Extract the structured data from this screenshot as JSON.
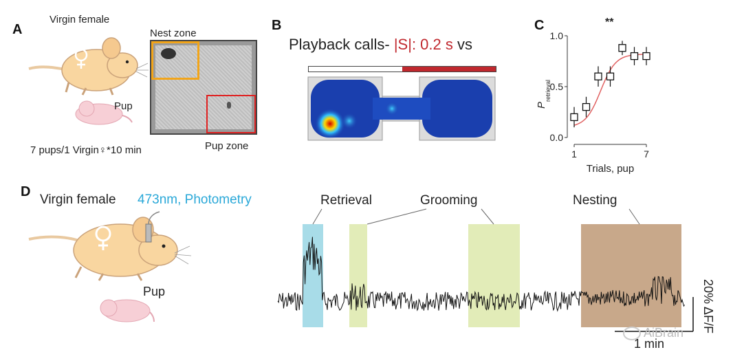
{
  "panel_a": {
    "label": "A",
    "subject": "Virgin female",
    "pup_label": "Pup",
    "nest_zone": "Nest zone",
    "pup_zone": "Pup zone",
    "protocol": "7 pups/1 Virgin♀*10 min",
    "colors": {
      "nest": "#f2a51a",
      "pup_zone": "#e02020",
      "mouse": "#f9d6a0",
      "pup": "#f7cfd6"
    }
  },
  "panel_b": {
    "label": "B",
    "title_prefix": "Playback calls- ",
    "title_red": "|S|: 0.2 s",
    "title_suffix": " vs",
    "colors": {
      "red": "#c0282e",
      "heat_bg": "#1a3fae"
    }
  },
  "panel_c": {
    "label": "C",
    "significance": "**",
    "chart_data": {
      "type": "scatter",
      "x": [
        1,
        2,
        3,
        4,
        5,
        6,
        7
      ],
      "y": [
        0.2,
        0.3,
        0.6,
        0.6,
        0.88,
        0.8,
        0.8
      ],
      "err": [
        0.1,
        0.1,
        0.1,
        0.1,
        0.07,
        0.09,
        0.09
      ],
      "xticks": [
        "1",
        "7"
      ],
      "yticks": [
        "0.0",
        "0.5",
        "1.0"
      ],
      "xlim": [
        1,
        7
      ],
      "ylim": [
        0,
        1
      ],
      "xlabel": "Trials, pup",
      "ylabel_main": "P",
      "ylabel_sub": "retrieval",
      "fit_color": "#e06060"
    }
  },
  "panel_d": {
    "label": "D",
    "subject": "Virgin female",
    "method": "473nm, Photometry",
    "pup_label": "Pup",
    "events": [
      "Retrieval",
      "Grooming",
      "Nesting"
    ],
    "scale_y": "20% ΔF/F",
    "scale_x": "1 min",
    "watermark": "AiBrain",
    "colors": {
      "method": "#2aa8d8",
      "retrieval": "#a8dce8",
      "grooming": "#e2ecb8",
      "nesting": "#c8a88a"
    }
  }
}
